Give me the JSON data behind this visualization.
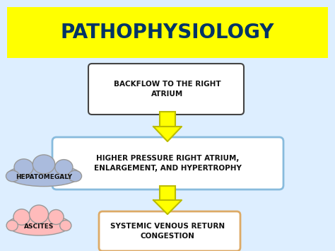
{
  "title": "PATHOPHYSIOLOGY",
  "title_bg": "#FFFF00",
  "title_color": "#003366",
  "bg_color": "#DDEEFF",
  "box1_text": "BACKFLOW TO THE RIGHT\nATRIUM",
  "box1_border": "#444444",
  "box1_fill": "#FFFFFF",
  "box2_text": "HIGHER PRESSURE RIGHT ATRIUM,\nENLARGEMENT, AND HYPERTROPHY",
  "box2_border": "#88BBDD",
  "box2_fill": "#FFFFFF",
  "box3_text": "SYSTEMIC VENOUS RETURN\nCONGESTION",
  "box3_border": "#DDAA66",
  "box3_fill": "#FFFFFF",
  "arrow_color": "#FFFF00",
  "arrow_edge": "#BBBB00",
  "cloud1_text": "HEPATOMEGALY",
  "cloud1_color": "#AABBDD",
  "cloud2_text": "ASCITES",
  "cloud2_color": "#FFBBBB",
  "text_color": "#111111",
  "font_size_title": 20,
  "font_size_box": 7.5,
  "font_size_cloud": 6.5
}
